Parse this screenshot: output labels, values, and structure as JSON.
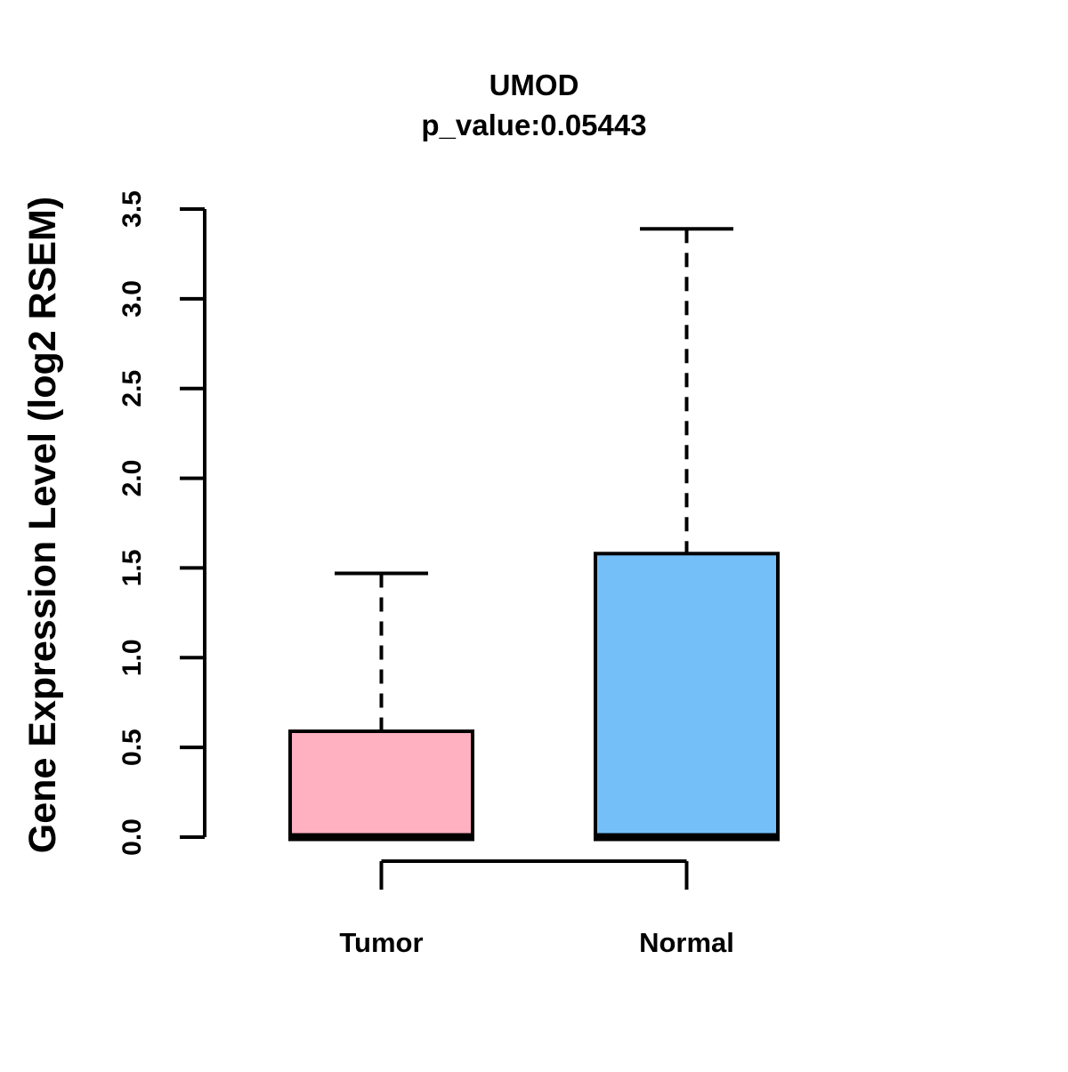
{
  "figure": {
    "background": "#FFFFFF"
  },
  "chart_data": {
    "type": "boxplot",
    "title": "UMOD",
    "subtitle": "p_value:0.05443",
    "ylabel": "Gene Expression Level (log2 RSEM)",
    "xlabel": "",
    "categories": [
      "Tumor",
      "Normal"
    ],
    "ylim": [
      0,
      3.5
    ],
    "yticks": [
      "0.0",
      "0.5",
      "1.0",
      "1.5",
      "2.0",
      "2.5",
      "3.0",
      "3.5"
    ],
    "grid": false,
    "line_color": "#000000",
    "series": [
      {
        "name": "Tumor",
        "color": "#FFB0C1",
        "stats": {
          "whisker_low": 0.0,
          "q1": 0.0,
          "median": 0.0,
          "q3": 0.59,
          "whisker_high": 1.47
        },
        "outliers": []
      },
      {
        "name": "Normal",
        "color": "#74BFF8",
        "stats": {
          "whisker_low": 0.0,
          "q1": 0.0,
          "median": 0.0,
          "q3": 1.58,
          "whisker_high": 3.39
        },
        "outliers": []
      }
    ],
    "comparison_bracket": {
      "from": "Tumor",
      "to": "Normal"
    }
  }
}
